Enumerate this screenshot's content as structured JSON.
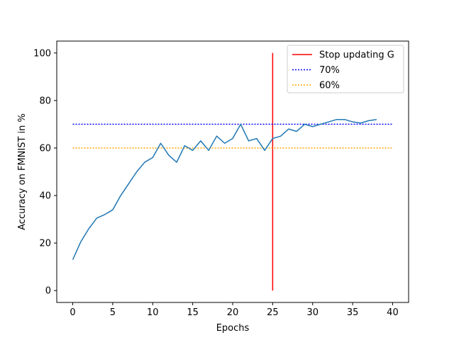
{
  "chart_data": {
    "type": "line",
    "title": "",
    "xlabel": "Epochs",
    "ylabel": "Accuracy on FMNIST in %",
    "xlim": [
      -2,
      42
    ],
    "ylim": [
      -5,
      105
    ],
    "xticks": [
      0,
      5,
      10,
      15,
      20,
      25,
      30,
      35,
      40
    ],
    "yticks": [
      0,
      20,
      40,
      60,
      80,
      100
    ],
    "grid": false,
    "legend_position": "top-right",
    "series": [
      {
        "color": "#1f77b4",
        "style": "solid",
        "x": [
          0,
          1,
          2,
          3,
          4,
          5,
          6,
          7,
          8,
          9,
          10,
          11,
          12,
          13,
          14,
          15,
          16,
          17,
          18,
          19,
          20,
          21,
          22,
          23,
          24,
          25,
          26,
          27,
          28,
          29,
          30,
          31,
          32,
          33,
          34,
          35,
          36,
          37,
          38
        ],
        "y": [
          13,
          20.5,
          26,
          30.5,
          32,
          34,
          40,
          45,
          50,
          54,
          56,
          62,
          57,
          54,
          61,
          59,
          63,
          59,
          65,
          62,
          64,
          70,
          63,
          64,
          59,
          64,
          65,
          68,
          67,
          70,
          69,
          70,
          71,
          72,
          72,
          71,
          70.5,
          71.5,
          72
        ]
      }
    ],
    "reference_lines": [
      {
        "name": "Stop updating G",
        "orientation": "vertical",
        "value": 25,
        "from": 0,
        "to": 100,
        "color": "#ff0000",
        "style": "solid"
      },
      {
        "name": "70%",
        "orientation": "horizontal",
        "value": 70,
        "from": 0,
        "to": 40,
        "color": "#0000ff",
        "style": "dotted"
      },
      {
        "name": "60%",
        "orientation": "horizontal",
        "value": 60,
        "from": 0,
        "to": 40,
        "color": "#ffa500",
        "style": "dotted"
      }
    ]
  }
}
